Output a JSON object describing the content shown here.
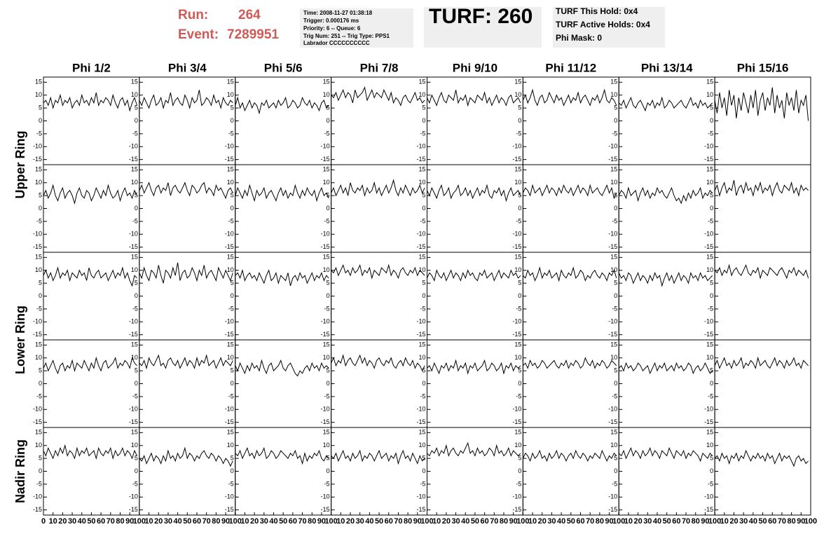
{
  "header": {
    "run_label": "Run:",
    "run": "264",
    "event_label": "Event:",
    "event": "7289951",
    "info": [
      "Time: 2008-11-27 01:38:18",
      "Trigger: 0.000176 ms",
      "Priority: 6 -- Queue: 6",
      "Trig Num: 251 -- Trig Type: PPS1",
      "Labrador CCCCCCCCCC"
    ],
    "turf": "TURF: 260",
    "status": [
      "TURF This Hold: 0x4",
      "TURF Active Holds: 0x4",
      "Phi Mask: 0"
    ]
  },
  "chart_data": {
    "type": "line",
    "color": "#000000",
    "column_titles": [
      "Phi 1/2",
      "Phi 3/4",
      "Phi 5/6",
      "Phi 7/8",
      "Phi 9/10",
      "Phi 11/12",
      "Phi 13/14",
      "Phi 15/16"
    ],
    "row_titles": [
      "Upper Ring",
      "Lower Ring",
      "Nadir Ring"
    ],
    "xlim": [
      0,
      100
    ],
    "xticks": [
      0,
      10,
      20,
      30,
      40,
      50,
      60,
      70,
      80,
      90,
      100
    ],
    "ylim": [
      -17,
      17
    ],
    "yticks": [
      -15,
      -10,
      -5,
      0,
      5,
      10,
      15
    ],
    "x": [
      0,
      2.5,
      5,
      7.5,
      10,
      12.5,
      15,
      17.5,
      20,
      22.5,
      25,
      27.5,
      30,
      32.5,
      35,
      37.5,
      40,
      42.5,
      45,
      47.5,
      50,
      52.5,
      55,
      57.5,
      60,
      62.5,
      65,
      67.5,
      70,
      72.5,
      75,
      77.5,
      80,
      82.5,
      85,
      87.5,
      90,
      92.5,
      95,
      97.5
    ],
    "panels": [
      [
        7,
        8,
        6,
        9,
        5,
        8,
        7,
        10,
        6,
        8,
        7,
        9,
        5,
        7,
        8,
        6,
        10,
        7,
        8,
        6,
        9,
        7,
        11,
        6,
        8,
        7,
        9,
        8,
        6,
        10,
        7,
        5,
        8,
        9,
        6,
        8,
        4,
        7,
        9,
        6
      ],
      [
        8,
        6,
        9,
        7,
        5,
        8,
        10,
        6,
        7,
        9,
        5,
        8,
        7,
        11,
        6,
        8,
        9,
        7,
        6,
        10,
        8,
        5,
        9,
        7,
        8,
        12,
        6,
        7,
        9,
        8,
        6,
        10,
        7,
        8,
        5,
        9,
        7,
        6,
        8,
        7
      ],
      [
        6,
        9,
        5,
        7,
        4,
        6,
        8,
        5,
        7,
        6,
        3,
        7,
        6,
        8,
        5,
        6,
        7,
        5,
        8,
        6,
        7,
        9,
        5,
        6,
        8,
        7,
        5,
        6,
        9,
        7,
        6,
        8,
        5,
        7,
        6,
        4,
        7,
        8,
        5,
        6
      ],
      [
        10,
        9,
        11,
        8,
        10,
        12,
        9,
        11,
        10,
        7,
        12,
        9,
        10,
        11,
        13,
        8,
        10,
        12,
        9,
        11,
        10,
        9,
        12,
        10,
        8,
        11,
        7,
        9,
        8,
        6,
        9,
        10,
        8,
        7,
        9,
        11,
        8,
        9,
        7,
        8
      ],
      [
        9,
        7,
        10,
        8,
        6,
        9,
        11,
        8,
        7,
        10,
        9,
        8,
        12,
        7,
        9,
        8,
        10,
        6,
        9,
        8,
        7,
        10,
        9,
        8,
        11,
        7,
        9,
        6,
        8,
        10,
        7,
        9,
        8,
        6,
        9,
        10,
        7,
        8,
        9,
        7
      ],
      [
        8,
        10,
        7,
        9,
        12,
        8,
        6,
        9,
        10,
        7,
        8,
        11,
        9,
        7,
        10,
        8,
        9,
        6,
        8,
        10,
        7,
        9,
        8,
        11,
        7,
        9,
        10,
        8,
        6,
        9,
        8,
        10,
        7,
        9,
        12,
        8,
        7,
        9,
        8,
        6
      ],
      [
        7,
        6,
        8,
        5,
        7,
        9,
        6,
        5,
        7,
        8,
        6,
        4,
        7,
        6,
        8,
        5,
        7,
        6,
        9,
        5,
        6,
        8,
        7,
        5,
        6,
        7,
        8,
        6,
        5,
        7,
        9,
        6,
        7,
        5,
        8,
        6,
        7,
        5,
        6,
        7
      ],
      [
        8,
        3,
        11,
        5,
        9,
        2,
        12,
        6,
        10,
        1,
        9,
        4,
        11,
        7,
        3,
        10,
        5,
        12,
        2,
        8,
        11,
        4,
        9,
        6,
        13,
        3,
        10,
        5,
        8,
        1,
        11,
        6,
        9,
        4,
        12,
        3,
        8,
        6,
        10,
        0
      ],
      [
        5,
        7,
        4,
        6,
        9,
        5,
        3,
        6,
        8,
        4,
        6,
        7,
        5,
        2,
        6,
        8,
        5,
        4,
        7,
        6,
        3,
        5,
        8,
        6,
        4,
        7,
        5,
        9,
        6,
        4,
        5,
        7,
        3,
        6,
        8,
        5,
        6,
        4,
        7,
        5
      ],
      [
        7,
        9,
        6,
        8,
        10,
        7,
        5,
        8,
        9,
        6,
        8,
        7,
        10,
        5,
        8,
        9,
        7,
        6,
        8,
        10,
        7,
        5,
        9,
        8,
        6,
        7,
        9,
        10,
        6,
        8,
        7,
        5,
        9,
        7,
        8,
        6,
        4,
        7,
        8,
        6
      ],
      [
        5,
        8,
        6,
        4,
        7,
        5,
        9,
        6,
        3,
        7,
        5,
        6,
        8,
        4,
        6,
        7,
        5,
        3,
        6,
        8,
        5,
        7,
        4,
        6,
        5,
        9,
        6,
        4,
        7,
        5,
        8,
        6,
        5,
        7,
        3,
        6,
        8,
        5,
        6,
        4
      ],
      [
        6,
        8,
        5,
        7,
        9,
        6,
        8,
        5,
        10,
        7,
        6,
        8,
        7,
        9,
        5,
        8,
        6,
        7,
        10,
        6,
        8,
        5,
        7,
        9,
        6,
        8,
        11,
        7,
        5,
        8,
        6,
        9,
        7,
        5,
        8,
        6,
        7,
        9,
        6,
        8
      ],
      [
        7,
        5,
        8,
        6,
        4,
        7,
        9,
        5,
        6,
        8,
        4,
        6,
        7,
        9,
        5,
        6,
        8,
        5,
        7,
        4,
        6,
        8,
        5,
        7,
        6,
        9,
        5,
        4,
        7,
        6,
        8,
        5,
        7,
        3,
        6,
        8,
        5,
        6,
        7,
        5
      ],
      [
        6,
        8,
        7,
        5,
        9,
        6,
        7,
        8,
        5,
        7,
        9,
        6,
        8,
        7,
        5,
        8,
        6,
        9,
        7,
        6,
        8,
        5,
        7,
        9,
        6,
        8,
        7,
        5,
        9,
        6,
        7,
        8,
        6,
        5,
        7,
        9,
        6,
        8,
        4,
        6
      ],
      [
        5,
        7,
        6,
        4,
        8,
        5,
        6,
        7,
        3,
        6,
        8,
        5,
        7,
        4,
        6,
        5,
        8,
        6,
        7,
        5,
        4,
        6,
        8,
        5,
        3,
        4,
        2,
        5,
        3,
        6,
        4,
        7,
        5,
        6,
        8,
        4,
        6,
        5,
        7,
        6
      ],
      [
        7,
        9,
        5,
        8,
        10,
        6,
        8,
        7,
        11,
        5,
        8,
        9,
        6,
        10,
        7,
        8,
        5,
        9,
        7,
        10,
        6,
        8,
        7,
        9,
        5,
        8,
        10,
        7,
        6,
        9,
        8,
        7,
        10,
        6,
        8,
        5,
        9,
        7,
        8,
        7
      ],
      [
        8,
        10,
        7,
        9,
        6,
        8,
        11,
        7,
        9,
        8,
        10,
        6,
        9,
        8,
        7,
        10,
        8,
        9,
        6,
        11,
        8,
        7,
        9,
        10,
        7,
        8,
        9,
        6,
        8,
        10,
        7,
        9,
        8,
        11,
        7,
        9,
        6,
        4,
        8,
        7
      ],
      [
        9,
        7,
        11,
        8,
        6,
        10,
        9,
        7,
        12,
        8,
        5,
        10,
        9,
        7,
        11,
        8,
        13,
        6,
        9,
        10,
        7,
        8,
        11,
        9,
        6,
        10,
        8,
        12,
        7,
        9,
        10,
        8,
        6,
        11,
        9,
        7,
        10,
        8,
        6,
        9
      ],
      [
        8,
        9,
        7,
        10,
        6,
        8,
        9,
        7,
        8,
        6,
        9,
        7,
        5,
        8,
        10,
        6,
        7,
        9,
        5,
        8,
        7,
        6,
        9,
        4,
        7,
        8,
        6,
        9,
        7,
        8,
        5,
        7,
        9,
        6,
        8,
        7,
        9,
        6,
        8,
        7
      ],
      [
        10,
        9,
        11,
        8,
        10,
        12,
        9,
        10,
        8,
        11,
        9,
        10,
        12,
        8,
        10,
        9,
        11,
        7,
        10,
        9,
        8,
        11,
        10,
        9,
        12,
        8,
        10,
        9,
        7,
        10,
        11,
        9,
        8,
        10,
        9,
        11,
        8,
        10,
        9,
        8
      ],
      [
        7,
        9,
        8,
        6,
        10,
        8,
        7,
        9,
        6,
        8,
        10,
        7,
        9,
        8,
        6,
        9,
        7,
        10,
        8,
        9,
        7,
        6,
        9,
        8,
        10,
        7,
        8,
        9,
        6,
        8,
        10,
        7,
        9,
        8,
        7,
        10,
        8,
        9,
        7,
        8
      ],
      [
        8,
        7,
        10,
        8,
        9,
        6,
        8,
        11,
        7,
        9,
        8,
        10,
        7,
        8,
        9,
        6,
        10,
        8,
        7,
        9,
        8,
        11,
        7,
        8,
        10,
        9,
        6,
        8,
        7,
        9,
        10,
        8,
        7,
        9,
        8,
        6,
        9,
        8,
        10,
        7
      ],
      [
        9,
        7,
        8,
        6,
        9,
        8,
        5,
        7,
        9,
        6,
        8,
        7,
        5,
        8,
        6,
        9,
        7,
        8,
        4,
        7,
        9,
        6,
        8,
        5,
        7,
        9,
        6,
        8,
        7,
        5,
        9,
        7,
        8,
        6,
        9,
        7,
        8,
        6,
        7,
        8
      ],
      [
        10,
        9,
        11,
        8,
        10,
        9,
        12,
        8,
        10,
        11,
        9,
        8,
        10,
        12,
        9,
        8,
        10,
        9,
        11,
        7,
        10,
        9,
        8,
        11,
        10,
        9,
        8,
        10,
        11,
        9,
        7,
        10,
        9,
        11,
        8,
        10,
        9,
        8,
        10,
        7
      ],
      [
        6,
        8,
        5,
        7,
        9,
        6,
        4,
        7,
        8,
        5,
        7,
        6,
        9,
        5,
        8,
        7,
        6,
        9,
        7,
        5,
        8,
        6,
        10,
        7,
        5,
        8,
        9,
        6,
        7,
        8,
        10,
        6,
        8,
        7,
        9,
        8,
        6,
        10,
        8,
        7
      ],
      [
        8,
        7,
        9,
        6,
        10,
        8,
        7,
        9,
        11,
        7,
        8,
        6,
        9,
        10,
        8,
        7,
        9,
        6,
        8,
        10,
        7,
        9,
        8,
        6,
        10,
        7,
        9,
        8,
        11,
        7,
        8,
        9,
        6,
        8,
        10,
        7,
        9,
        8,
        7,
        9
      ],
      [
        7,
        5,
        8,
        6,
        4,
        7,
        5,
        8,
        6,
        7,
        5,
        9,
        6,
        4,
        7,
        8,
        5,
        6,
        7,
        9,
        6,
        5,
        7,
        8,
        6,
        4,
        3,
        5,
        4,
        6,
        7,
        5,
        8,
        6,
        7,
        5,
        8,
        6,
        7,
        6
      ],
      [
        8,
        10,
        7,
        9,
        8,
        11,
        7,
        9,
        10,
        8,
        7,
        9,
        11,
        8,
        10,
        7,
        9,
        8,
        6,
        9,
        10,
        8,
        7,
        9,
        8,
        10,
        7,
        6,
        8,
        9,
        7,
        10,
        8,
        7,
        9,
        6,
        8,
        7,
        5,
        7
      ],
      [
        6,
        7,
        5,
        8,
        6,
        4,
        7,
        6,
        8,
        5,
        7,
        6,
        9,
        5,
        7,
        6,
        8,
        4,
        7,
        6,
        8,
        5,
        6,
        7,
        9,
        5,
        6,
        8,
        7,
        5,
        6,
        8,
        4,
        7,
        6,
        8,
        5,
        7,
        6,
        7
      ],
      [
        7,
        8,
        6,
        9,
        7,
        8,
        6,
        7,
        9,
        8,
        6,
        7,
        8,
        9,
        7,
        6,
        8,
        7,
        9,
        6,
        8,
        7,
        9,
        8,
        6,
        7,
        10,
        8,
        7,
        9,
        6,
        8,
        7,
        9,
        8,
        6,
        7,
        9,
        8,
        7
      ],
      [
        6,
        7,
        5,
        8,
        6,
        7,
        5,
        6,
        8,
        7,
        5,
        6,
        7,
        4,
        6,
        8,
        5,
        7,
        6,
        8,
        5,
        6,
        7,
        5,
        8,
        6,
        7,
        5,
        6,
        8,
        7,
        4,
        6,
        7,
        5,
        6,
        8,
        6,
        4,
        5
      ],
      [
        7,
        9,
        6,
        8,
        10,
        7,
        8,
        6,
        9,
        7,
        8,
        10,
        6,
        8,
        7,
        9,
        8,
        6,
        10,
        7,
        8,
        9,
        7,
        6,
        8,
        10,
        7,
        9,
        8,
        6,
        9,
        7,
        8,
        10,
        7,
        8,
        6,
        9,
        8,
        7
      ],
      [
        8,
        6,
        9,
        7,
        5,
        8,
        6,
        9,
        7,
        10,
        6,
        8,
        7,
        5,
        9,
        6,
        8,
        7,
        9,
        6,
        7,
        8,
        5,
        9,
        7,
        6,
        8,
        7,
        9,
        5,
        8,
        6,
        7,
        9,
        6,
        8,
        7,
        5,
        8,
        6
      ],
      [
        5,
        4,
        6,
        3,
        5,
        7,
        4,
        6,
        5,
        3,
        6,
        4,
        8,
        5,
        6,
        4,
        7,
        5,
        6,
        9,
        5,
        7,
        6,
        4,
        6,
        5,
        7,
        8,
        6,
        5,
        7,
        6,
        4,
        6,
        5,
        3,
        5,
        4,
        2,
        4
      ],
      [
        7,
        6,
        8,
        5,
        7,
        9,
        6,
        7,
        5,
        8,
        6,
        7,
        9,
        5,
        6,
        8,
        7,
        5,
        6,
        8,
        7,
        6,
        5,
        7,
        6,
        8,
        5,
        6,
        3,
        7,
        4,
        6,
        5,
        7,
        6,
        8,
        5,
        4,
        6,
        5
      ],
      [
        6,
        5,
        7,
        4,
        6,
        8,
        5,
        6,
        4,
        7,
        5,
        6,
        8,
        4,
        6,
        5,
        7,
        6,
        4,
        6,
        8,
        5,
        6,
        7,
        4,
        6,
        5,
        7,
        3,
        6,
        8,
        5,
        6,
        4,
        7,
        5,
        3,
        6,
        4,
        5
      ],
      [
        7,
        6,
        8,
        7,
        9,
        6,
        8,
        7,
        10,
        6,
        8,
        9,
        7,
        6,
        8,
        7,
        9,
        11,
        7,
        8,
        6,
        9,
        7,
        8,
        6,
        7,
        9,
        8,
        6,
        10,
        7,
        8,
        6,
        7,
        9,
        6,
        8,
        7,
        6,
        7
      ],
      [
        5,
        7,
        6,
        4,
        7,
        5,
        6,
        8,
        5,
        6,
        4,
        7,
        5,
        6,
        8,
        5,
        7,
        6,
        4,
        6,
        7,
        5,
        8,
        6,
        5,
        7,
        6,
        4,
        6,
        5,
        7,
        6,
        5,
        8,
        6,
        4,
        6,
        5,
        7,
        6
      ],
      [
        7,
        6,
        8,
        5,
        7,
        9,
        6,
        8,
        7,
        5,
        8,
        6,
        7,
        9,
        6,
        8,
        7,
        5,
        8,
        7,
        6,
        9,
        7,
        5,
        8,
        7,
        6,
        8,
        5,
        7,
        6,
        8,
        7,
        6,
        4,
        7,
        6,
        5,
        7,
        6
      ],
      [
        5,
        6,
        4,
        7,
        5,
        6,
        3,
        6,
        5,
        7,
        4,
        6,
        5,
        8,
        6,
        4,
        6,
        5,
        7,
        5,
        6,
        4,
        7,
        5,
        6,
        3,
        5,
        7,
        4,
        6,
        5,
        6,
        4,
        2,
        5,
        6,
        4,
        5,
        3,
        4
      ]
    ]
  }
}
